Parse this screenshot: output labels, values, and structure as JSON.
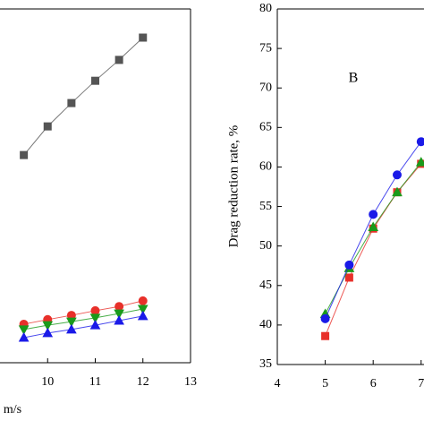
{
  "chart_data": [
    {
      "type": "line",
      "xlabel": "m/s",
      "x": [
        9.5,
        10,
        10.5,
        11,
        11.5,
        12
      ],
      "xlim": [
        9,
        13
      ],
      "xticks": [
        10,
        11,
        12,
        13
      ],
      "ylim": [
        0,
        100
      ],
      "series": [
        {
          "color": "#555555",
          "marker": "square",
          "values": [
            58.7,
            66.8,
            73.4,
            79.7,
            85.6,
            91.9
          ]
        },
        {
          "color": "#e8302a",
          "marker": "circle",
          "values": [
            10.9,
            12.2,
            13.4,
            14.7,
            15.9,
            17.5
          ]
        },
        {
          "color": "#1a9a1a",
          "marker": "triangle-down",
          "values": [
            9.4,
            10.6,
            11.6,
            12.7,
            13.9,
            15.2
          ]
        },
        {
          "color": "#1a1ae8",
          "marker": "triangle-up",
          "values": [
            7.1,
            8.4,
            9.4,
            10.6,
            11.9,
            13.2
          ]
        }
      ]
    },
    {
      "type": "line",
      "ylabel": "Drag reduction rate, %",
      "annotation": "B",
      "x": [
        5,
        5.5,
        6,
        6.5,
        7
      ],
      "xlim": [
        4,
        7.06
      ],
      "xticks": [
        4,
        5,
        6,
        7
      ],
      "ylim": [
        35,
        80
      ],
      "yticks": [
        35,
        40,
        45,
        50,
        55,
        60,
        65,
        70,
        75,
        80
      ],
      "series": [
        {
          "color": "#e8302a",
          "marker": "square",
          "values": [
            38.6,
            46,
            52.2,
            56.8,
            60.4
          ]
        },
        {
          "color": "#1a9a1a",
          "marker": "triangle-up",
          "values": [
            41.4,
            47.2,
            52.4,
            56.8,
            60.6
          ]
        },
        {
          "color": "#1a1ae8",
          "marker": "circle",
          "values": [
            40.8,
            47.6,
            54,
            59,
            63.2
          ]
        }
      ]
    }
  ]
}
